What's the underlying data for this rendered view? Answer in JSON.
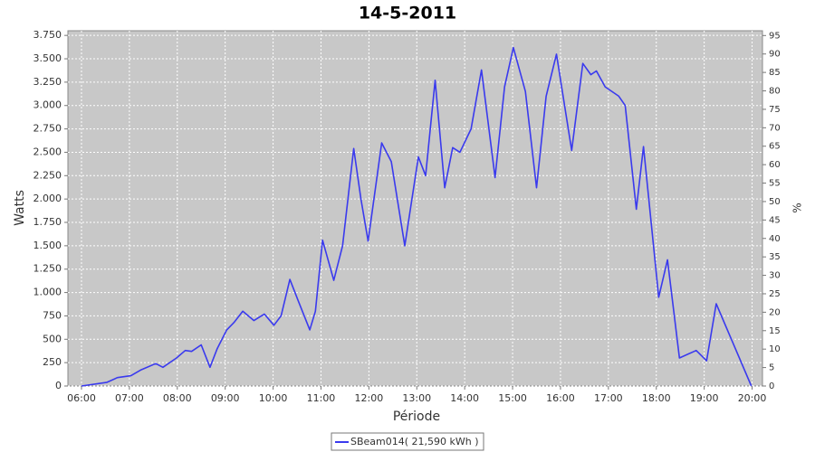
{
  "chart_data": {
    "type": "line",
    "title": "14-5-2011",
    "x_label": "Période",
    "y_label": "Watts",
    "y2_label": "%",
    "x": [
      "06:00",
      "06:32",
      "06:45",
      "07:02",
      "07:14",
      "07:33",
      "07:42",
      "07:59",
      "08:10",
      "08:18",
      "08:30",
      "08:41",
      "08:50",
      "09:02",
      "09:11",
      "09:22",
      "09:36",
      "09:49",
      "10:01",
      "10:10",
      "10:21",
      "10:32",
      "10:46",
      "10:53",
      "11:02",
      "11:16",
      "11:27",
      "11:41",
      "11:50",
      "11:59",
      "12:16",
      "12:28",
      "12:45",
      "13:02",
      "13:11",
      "13:23",
      "13:35",
      "13:45",
      "13:54",
      "14:08",
      "14:21",
      "14:38",
      "14:50",
      "15:01",
      "15:16",
      "15:30",
      "15:42",
      "15:55",
      "16:14",
      "16:28",
      "16:38",
      "16:45",
      "16:56",
      "17:13",
      "17:21",
      "17:35",
      "17:44",
      "18:03",
      "18:14",
      "18:29",
      "18:50",
      "19:03",
      "19:15",
      "19:59"
    ],
    "series": [
      {
        "name": "SBeam014( 21,590 kWh )",
        "color": "#3a3aee",
        "values": [
          0,
          40,
          90,
          110,
          170,
          240,
          200,
          300,
          380,
          370,
          440,
          200,
          400,
          600,
          680,
          800,
          700,
          770,
          650,
          750,
          1140,
          900,
          600,
          800,
          1560,
          1130,
          1500,
          2540,
          2000,
          1550,
          2600,
          2400,
          1500,
          2450,
          2250,
          3270,
          2120,
          2550,
          2500,
          2750,
          3380,
          2230,
          3200,
          3620,
          3150,
          2120,
          3100,
          3550,
          2520,
          3450,
          3330,
          3370,
          3200,
          3100,
          3000,
          1890,
          2560,
          950,
          1350,
          300,
          380,
          270,
          880,
          0
        ]
      }
    ],
    "xlim": [
      "05:43",
      "20:13"
    ],
    "xticks": [
      "06:00",
      "07:00",
      "08:00",
      "09:00",
      "10:00",
      "11:00",
      "12:00",
      "13:00",
      "14:00",
      "15:00",
      "16:00",
      "17:00",
      "18:00",
      "19:00",
      "20:00"
    ],
    "ylim": [
      0,
      3800
    ],
    "yticks": [
      0,
      250,
      500,
      750,
      {
        "value": 1000,
        "label": "1.000"
      },
      {
        "value": 1250,
        "label": "1.250"
      },
      {
        "value": 1500,
        "label": "1.500"
      },
      {
        "value": 1750,
        "label": "1.750"
      },
      {
        "value": 2000,
        "label": "2.000"
      },
      {
        "value": 2250,
        "label": "2.250"
      },
      {
        "value": 2500,
        "label": "2.500"
      },
      {
        "value": 2750,
        "label": "2.750"
      },
      {
        "value": 3000,
        "label": "3.000"
      },
      {
        "value": 3250,
        "label": "3.250"
      },
      {
        "value": 3500,
        "label": "3.500"
      },
      {
        "value": 3750,
        "label": "3.750"
      }
    ],
    "y2lim": [
      0,
      96.3
    ],
    "y2ticks": [
      0,
      5,
      10,
      15,
      20,
      25,
      30,
      35,
      40,
      45,
      50,
      55,
      60,
      65,
      70,
      75,
      80,
      85,
      90,
      95
    ],
    "grid": true
  }
}
